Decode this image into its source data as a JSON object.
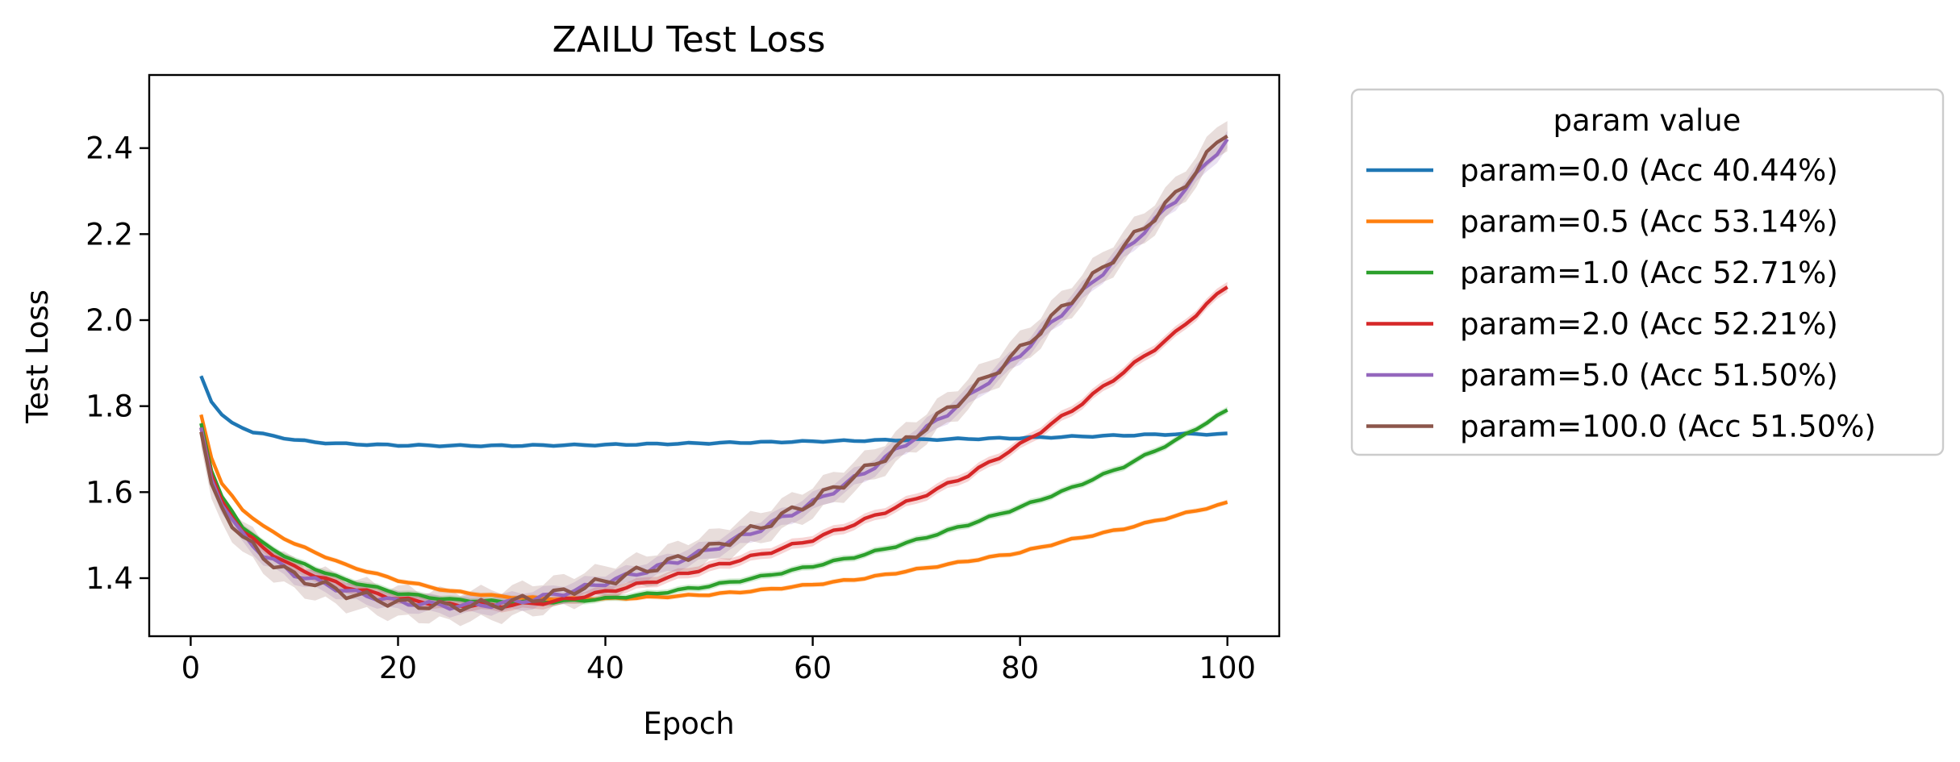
{
  "chart_data": {
    "type": "line",
    "title": "ZAILU Test Loss",
    "xlabel": "Epoch",
    "ylabel": "Test Loss",
    "xlim": [
      -4,
      105
    ],
    "ylim": [
      1.265,
      2.57
    ],
    "xticks": [
      0,
      20,
      40,
      60,
      80,
      100
    ],
    "xtick_labels": [
      "0",
      "20",
      "40",
      "60",
      "80",
      "100"
    ],
    "yticks": [
      1.4,
      1.6,
      1.8,
      2.0,
      2.2,
      2.4
    ],
    "ytick_labels": [
      "1.4",
      "1.6",
      "1.8",
      "2.0",
      "2.2",
      "2.4"
    ],
    "grid": false,
    "legend": {
      "title": "param value",
      "placement": "outside-right"
    },
    "series": [
      {
        "name": "param=0.0 (Acc 40.44%)",
        "color": "#1f77b4",
        "band": 0.005,
        "x": [
          1,
          2,
          3,
          4,
          5,
          6,
          8,
          10,
          12,
          15,
          20,
          25,
          30,
          40,
          50,
          60,
          70,
          80,
          90,
          95,
          100
        ],
        "y": [
          1.87,
          1.81,
          1.78,
          1.76,
          1.75,
          1.74,
          1.73,
          1.722,
          1.716,
          1.712,
          1.709,
          1.708,
          1.708,
          1.71,
          1.714,
          1.718,
          1.722,
          1.726,
          1.732,
          1.735,
          1.735
        ]
      },
      {
        "name": "param=0.5 (Acc 53.14%)",
        "color": "#ff7f0e",
        "band": 0.006,
        "x": [
          1,
          2,
          3,
          5,
          7,
          10,
          15,
          20,
          25,
          30,
          35,
          40,
          45,
          50,
          55,
          60,
          65,
          70,
          75,
          80,
          85,
          90,
          95,
          100
        ],
        "y": [
          1.78,
          1.68,
          1.62,
          1.56,
          1.52,
          1.48,
          1.43,
          1.395,
          1.37,
          1.357,
          1.352,
          1.352,
          1.356,
          1.362,
          1.372,
          1.385,
          1.4,
          1.42,
          1.44,
          1.46,
          1.49,
          1.515,
          1.545,
          1.575
        ]
      },
      {
        "name": "param=1.0 (Acc 52.71%)",
        "color": "#2ca02c",
        "band": 0.008,
        "x": [
          1,
          2,
          3,
          5,
          7,
          10,
          15,
          20,
          25,
          30,
          35,
          40,
          45,
          50,
          55,
          60,
          65,
          70,
          75,
          80,
          85,
          90,
          95,
          100
        ],
        "y": [
          1.76,
          1.65,
          1.59,
          1.52,
          1.48,
          1.44,
          1.395,
          1.365,
          1.35,
          1.345,
          1.345,
          1.352,
          1.365,
          1.382,
          1.403,
          1.428,
          1.455,
          1.488,
          1.525,
          1.565,
          1.61,
          1.66,
          1.72,
          1.79
        ]
      },
      {
        "name": "param=2.0 (Acc 52.21%)",
        "color": "#d62728",
        "band": 0.012,
        "x": [
          1,
          2,
          3,
          5,
          7,
          10,
          15,
          20,
          25,
          30,
          35,
          40,
          45,
          50,
          55,
          60,
          65,
          70,
          75,
          80,
          85,
          90,
          95,
          100
        ],
        "y": [
          1.75,
          1.64,
          1.58,
          1.51,
          1.47,
          1.425,
          1.38,
          1.352,
          1.338,
          1.336,
          1.345,
          1.368,
          1.395,
          1.425,
          1.455,
          1.49,
          1.535,
          1.585,
          1.64,
          1.71,
          1.79,
          1.88,
          1.97,
          2.08
        ]
      },
      {
        "name": "param=5.0 (Acc 51.50%)",
        "color": "#9467bd",
        "band": 0.02,
        "x": [
          1,
          2,
          3,
          5,
          7,
          10,
          15,
          20,
          25,
          30,
          35,
          40,
          45,
          50,
          55,
          60,
          65,
          70,
          75,
          80,
          85,
          90,
          95,
          100
        ],
        "y": [
          1.75,
          1.63,
          1.57,
          1.5,
          1.455,
          1.41,
          1.37,
          1.345,
          1.335,
          1.34,
          1.36,
          1.39,
          1.425,
          1.465,
          1.515,
          1.575,
          1.645,
          1.73,
          1.82,
          1.92,
          2.04,
          2.16,
          2.28,
          2.42
        ]
      },
      {
        "name": "param=100.0 (Acc 51.50%)",
        "color": "#8c564b",
        "band": 0.035,
        "x": [
          1,
          2,
          3,
          5,
          7,
          10,
          15,
          20,
          25,
          30,
          35,
          40,
          45,
          50,
          55,
          60,
          65,
          70,
          75,
          80,
          85,
          90,
          95,
          100
        ],
        "y": [
          1.74,
          1.62,
          1.565,
          1.495,
          1.45,
          1.405,
          1.365,
          1.342,
          1.334,
          1.34,
          1.362,
          1.392,
          1.428,
          1.468,
          1.52,
          1.58,
          1.65,
          1.735,
          1.83,
          1.93,
          2.05,
          2.17,
          2.29,
          2.44
        ]
      }
    ]
  }
}
